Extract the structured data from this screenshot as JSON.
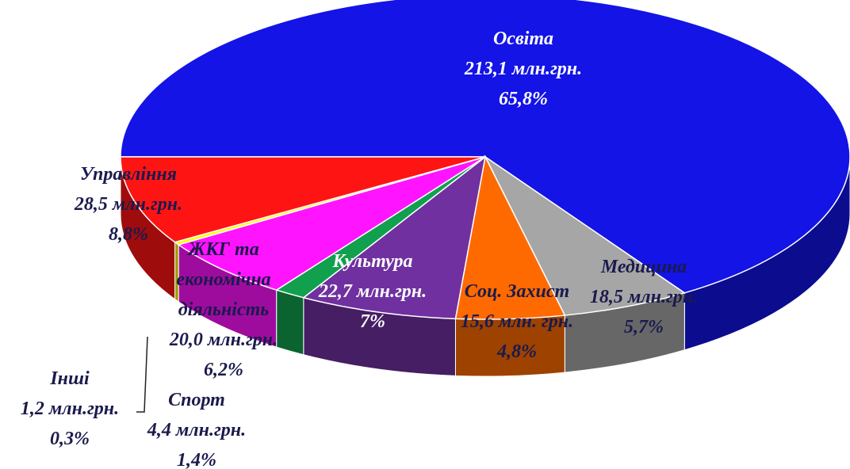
{
  "chart_data": {
    "type": "pie",
    "categories": [
      "Освіта",
      "Медицина",
      "Соц. Захист",
      "Культура",
      "Спорт",
      "ЖКГ та економічна діяльність",
      "Інші",
      "Управління"
    ],
    "values": [
      65.8,
      5.7,
      4.8,
      7,
      1.4,
      6.2,
      0.3,
      8.8
    ],
    "value_labels": [
      "65,8%",
      "5,7%",
      "4,8%",
      "7%",
      "1,4%",
      "6,2%",
      "0,3%",
      "8,8%"
    ],
    "amount_labels": [
      "213,1 млн.грн.",
      "18,5 млн.грн.",
      "15,6 млн. грн.",
      "22,7 млн.грн.",
      "4,4 млн.грн.",
      "20,0 млн.грн.",
      "1,2 млн.грн.",
      "28,5 млн.грн."
    ],
    "colors": [
      "#1414e6",
      "#a6a6a6",
      "#ff6a00",
      "#7030a0",
      "#11a04e",
      "#ff14ff",
      "#ffff00",
      "#ff1414"
    ]
  }
}
